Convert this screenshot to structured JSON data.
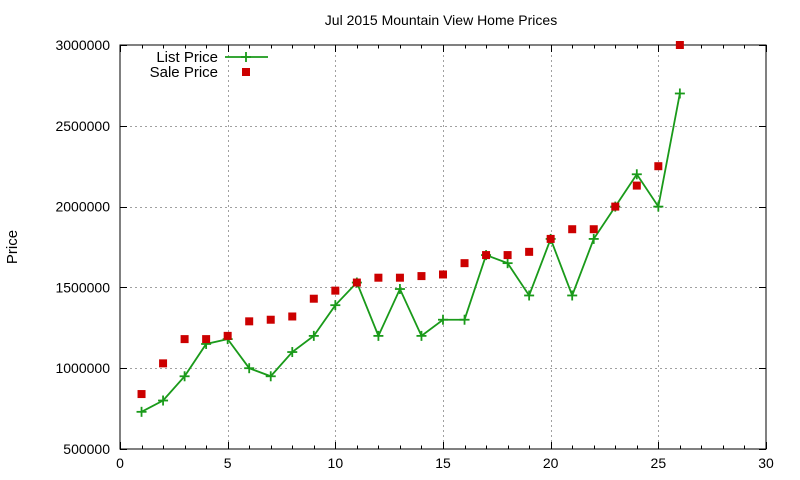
{
  "chart_data": {
    "type": "line",
    "title": "Jul 2015 Mountain View Home Prices",
    "xlabel": "",
    "ylabel": "Price",
    "xlim": [
      0,
      30
    ],
    "ylim": [
      500000,
      3000000
    ],
    "x_ticks": [
      0,
      5,
      10,
      15,
      20,
      25,
      30
    ],
    "y_ticks": [
      500000,
      1000000,
      1500000,
      2000000,
      2500000,
      3000000
    ],
    "grid": true,
    "legend_position": "top-left",
    "series": [
      {
        "name": "List Price",
        "style": "line-with-plus-markers",
        "color": "#1a9a1a",
        "x": [
          1,
          2,
          3,
          4,
          5,
          6,
          7,
          8,
          9,
          10,
          11,
          12,
          13,
          14,
          15,
          16,
          17,
          18,
          19,
          20,
          21,
          22,
          23,
          24,
          25,
          26
        ],
        "y": [
          730000,
          800000,
          950000,
          1150000,
          1180000,
          1000000,
          950000,
          1100000,
          1200000,
          1390000,
          1530000,
          1200000,
          1490000,
          1200000,
          1300000,
          1300000,
          1700000,
          1650000,
          1450000,
          1800000,
          1450000,
          1800000,
          2000000,
          2200000,
          2000000,
          2700000
        ]
      },
      {
        "name": "Sale Price",
        "style": "square-markers",
        "color": "#cc0000",
        "x": [
          1,
          2,
          3,
          4,
          5,
          6,
          7,
          8,
          9,
          10,
          11,
          12,
          13,
          14,
          15,
          16,
          17,
          18,
          19,
          20,
          21,
          22,
          23,
          24,
          25,
          26
        ],
        "y": [
          840000,
          1030000,
          1180000,
          1180000,
          1200000,
          1290000,
          1300000,
          1320000,
          1430000,
          1480000,
          1530000,
          1560000,
          1560000,
          1570000,
          1580000,
          1650000,
          1700000,
          1700000,
          1720000,
          1800000,
          1860000,
          1860000,
          2000000,
          2130000,
          2250000,
          3000000
        ]
      }
    ]
  }
}
